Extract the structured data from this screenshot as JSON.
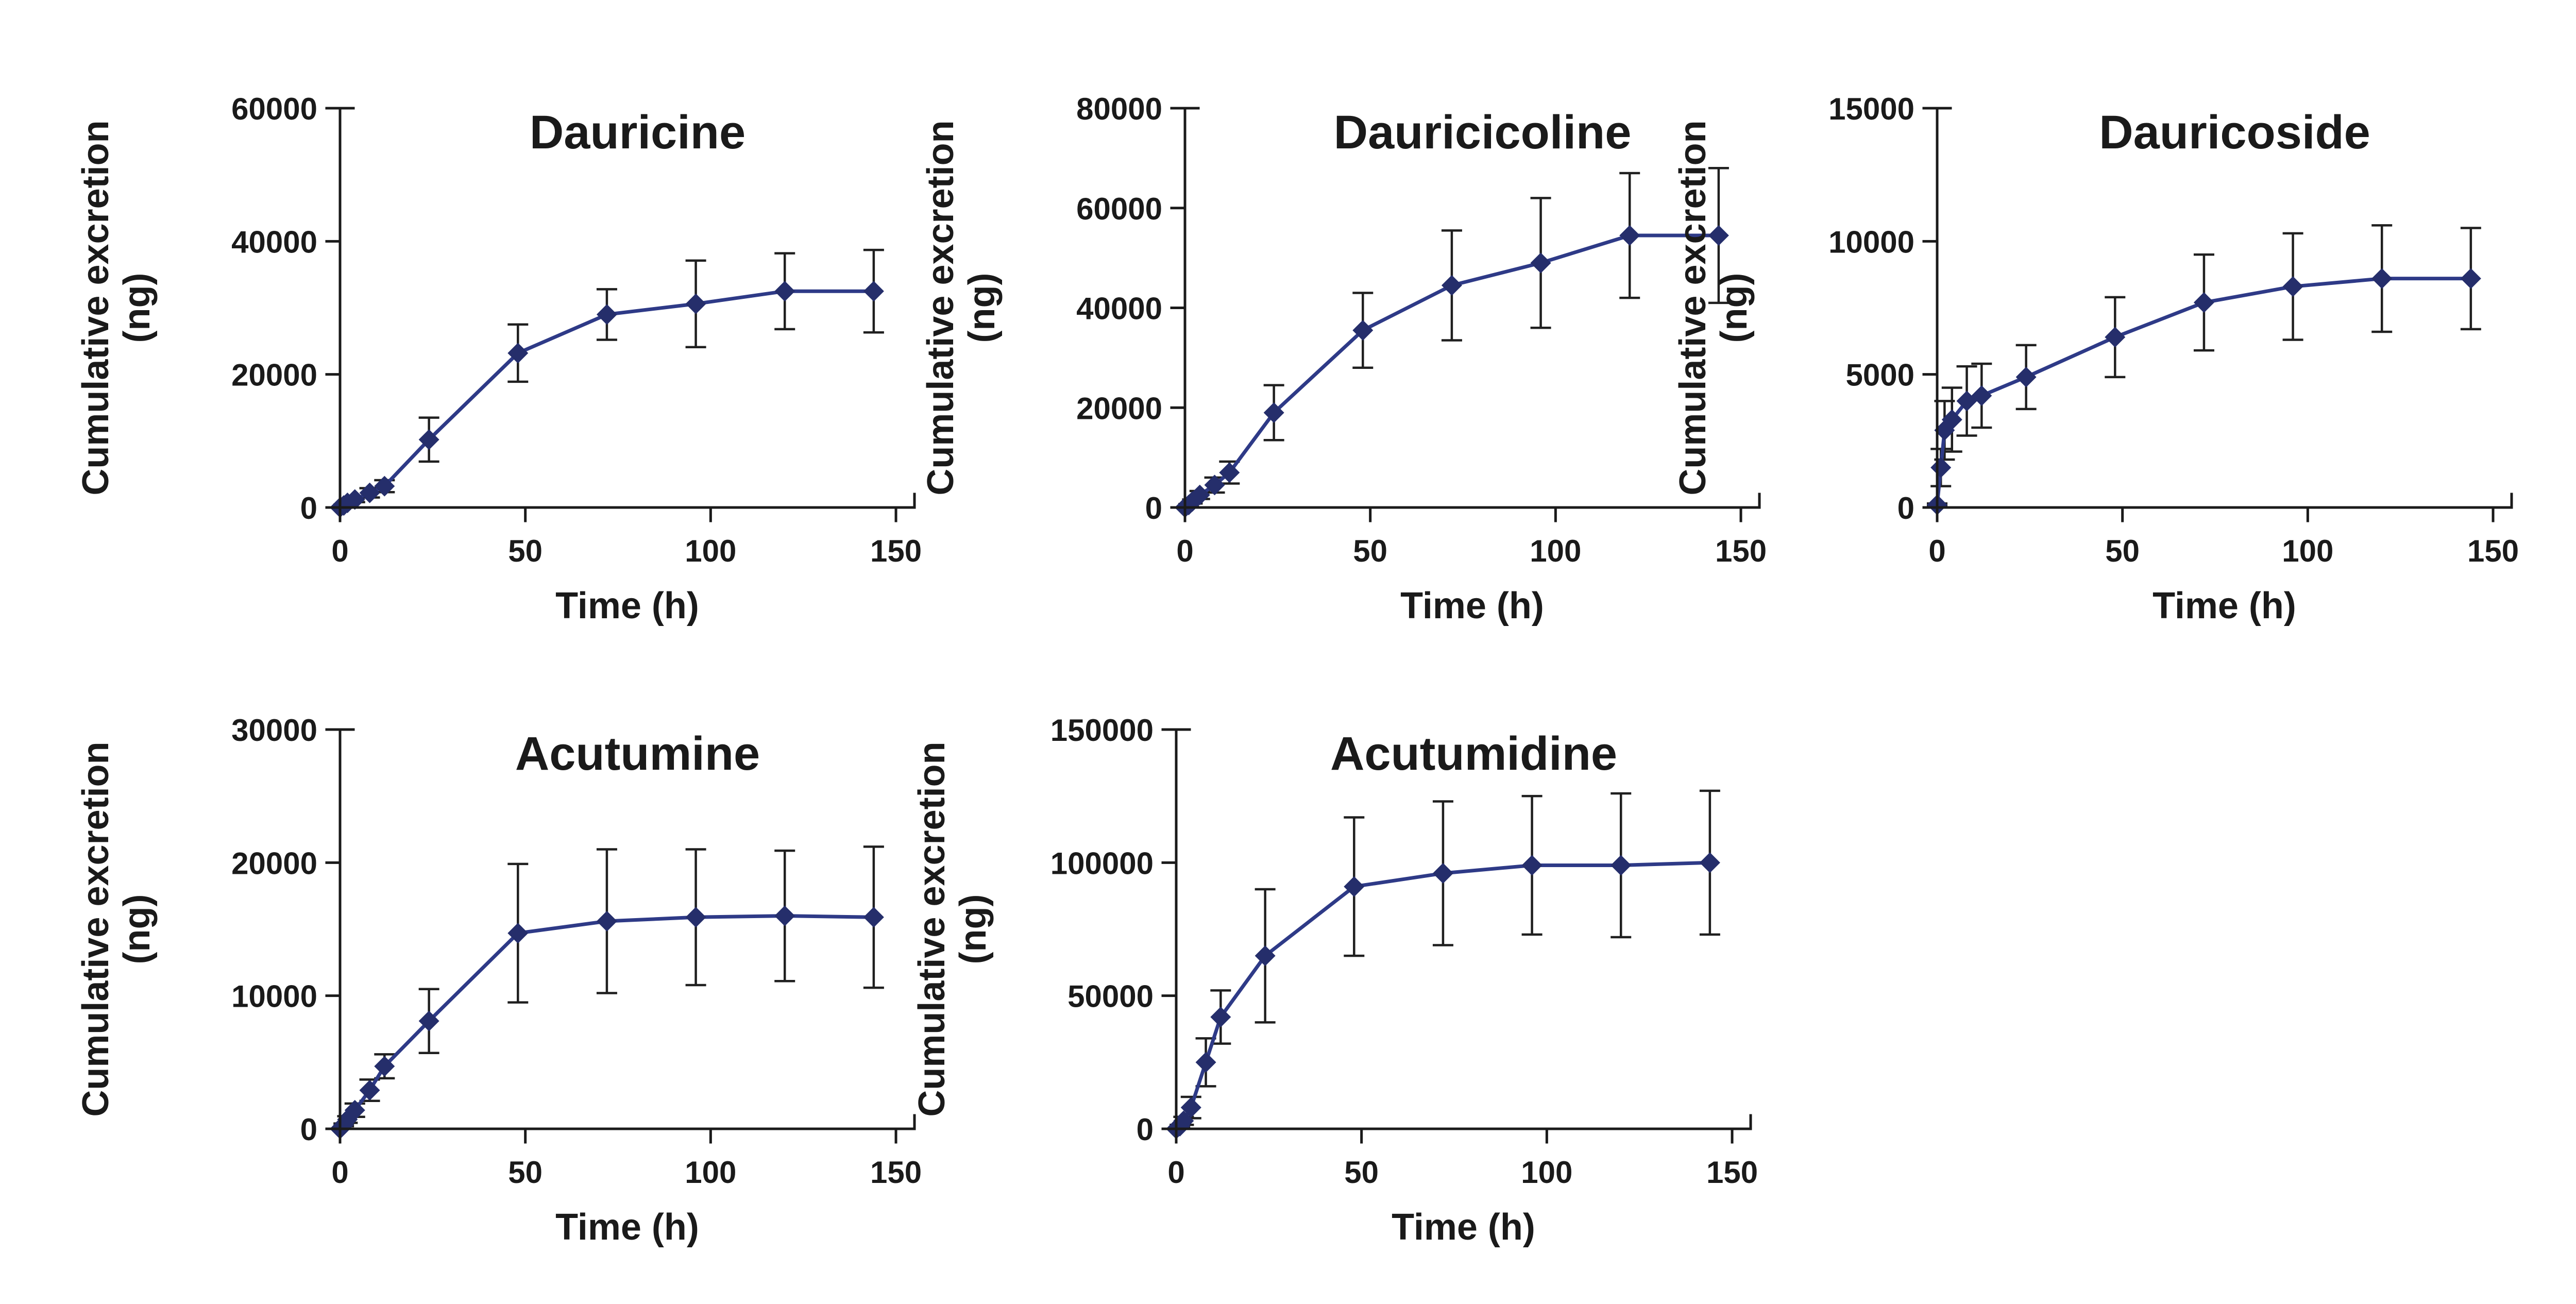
{
  "figure": {
    "colors": {
      "series": "#2e3a87",
      "marker": "#252e6b",
      "error": "#1f1f1f",
      "text": "#1a1a1a"
    }
  },
  "chart_data": [
    {
      "type": "line",
      "slug": "dauricine",
      "title": "Dauricine",
      "xlabel": "Time (h)",
      "ylabel": "Cumulative excretion (ng)",
      "ylabel_lines": [
        "Cumulative excretion",
        "(ng)"
      ],
      "xlim": [
        0,
        150
      ],
      "ylim": [
        0,
        60000
      ],
      "xticks": [
        0,
        50,
        100,
        150
      ],
      "yticks": [
        0,
        20000,
        40000,
        60000
      ],
      "x": [
        0,
        1,
        2,
        4,
        8,
        12,
        24,
        48,
        72,
        96,
        120,
        144
      ],
      "y": [
        0,
        300,
        700,
        1200,
        2200,
        3200,
        10200,
        23200,
        29000,
        30600,
        32500,
        32500
      ],
      "yerr": [
        0,
        150,
        250,
        400,
        700,
        900,
        3300,
        4300,
        3800,
        6500,
        5700,
        6200
      ]
    },
    {
      "type": "line",
      "slug": "dauricicoline",
      "title": "Dauricicoline",
      "xlabel": "Time (h)",
      "ylabel": "Cumulative excretion (ng)",
      "ylabel_lines": [
        "Cumulative excretion",
        "(ng)"
      ],
      "xlim": [
        0,
        150
      ],
      "ylim": [
        0,
        80000
      ],
      "xticks": [
        0,
        50,
        100,
        150
      ],
      "yticks": [
        0,
        20000,
        40000,
        60000,
        80000
      ],
      "x": [
        0,
        1,
        2,
        4,
        8,
        12,
        24,
        48,
        72,
        96,
        120,
        144
      ],
      "y": [
        0,
        500,
        1200,
        2500,
        4500,
        7000,
        19000,
        35500,
        44500,
        49000,
        54500,
        54500
      ],
      "yerr": [
        0,
        200,
        400,
        800,
        1500,
        2200,
        5500,
        7500,
        11000,
        13000,
        12500,
        13500
      ]
    },
    {
      "type": "line",
      "slug": "dauricoside",
      "title": "Dauricoside",
      "xlabel": "Time (h)",
      "ylabel": "Cumulative excretion (ng)",
      "ylabel_lines": [
        "Cumulative excretion",
        "(ng)"
      ],
      "xlim": [
        0,
        150
      ],
      "ylim": [
        0,
        15000
      ],
      "xticks": [
        0,
        50,
        100,
        150
      ],
      "yticks": [
        0,
        5000,
        10000,
        15000
      ],
      "x": [
        0,
        1,
        2,
        4,
        8,
        12,
        24,
        48,
        72,
        96,
        120,
        144
      ],
      "y": [
        100,
        1500,
        2900,
        3300,
        4000,
        4200,
        4900,
        6400,
        7700,
        8300,
        8600,
        8600
      ],
      "yerr": [
        50,
        700,
        1100,
        1200,
        1300,
        1200,
        1200,
        1500,
        1800,
        2000,
        2000,
        1900
      ]
    },
    {
      "type": "line",
      "slug": "acutumine",
      "title": "Acutumine",
      "xlabel": "Time (h)",
      "ylabel": "Cumulative excretion (ng)",
      "ylabel_lines": [
        "Cumulative excretion",
        "(ng)"
      ],
      "xlim": [
        0,
        150
      ],
      "ylim": [
        0,
        30000
      ],
      "xticks": [
        0,
        50,
        100,
        150
      ],
      "yticks": [
        0,
        10000,
        20000,
        30000
      ],
      "x": [
        0,
        1,
        2,
        4,
        8,
        12,
        24,
        48,
        72,
        96,
        120,
        144
      ],
      "y": [
        0,
        300,
        700,
        1400,
        2900,
        4700,
        8100,
        14700,
        15600,
        15900,
        16000,
        15900
      ],
      "yerr": [
        0,
        100,
        250,
        500,
        800,
        900,
        2400,
        5200,
        5400,
        5100,
        4900,
        5300
      ]
    },
    {
      "type": "line",
      "slug": "acutumidine",
      "title": "Acutumidine",
      "xlabel": "Time (h)",
      "ylabel": "Cumulative excretion (ng)",
      "ylabel_lines": [
        "Cumulative excretion",
        "(ng)"
      ],
      "xlim": [
        0,
        150
      ],
      "ylim": [
        0,
        150000
      ],
      "xticks": [
        0,
        50,
        100,
        150
      ],
      "yticks": [
        0,
        50000,
        100000,
        150000
      ],
      "x": [
        0,
        1,
        2,
        4,
        8,
        12,
        24,
        48,
        72,
        96,
        120,
        144
      ],
      "y": [
        0,
        1000,
        3000,
        8000,
        25000,
        42000,
        65000,
        91000,
        96000,
        99000,
        99000,
        100000
      ],
      "yerr": [
        0,
        500,
        1500,
        4000,
        9000,
        10000,
        25000,
        26000,
        27000,
        26000,
        27000,
        27000
      ]
    }
  ]
}
